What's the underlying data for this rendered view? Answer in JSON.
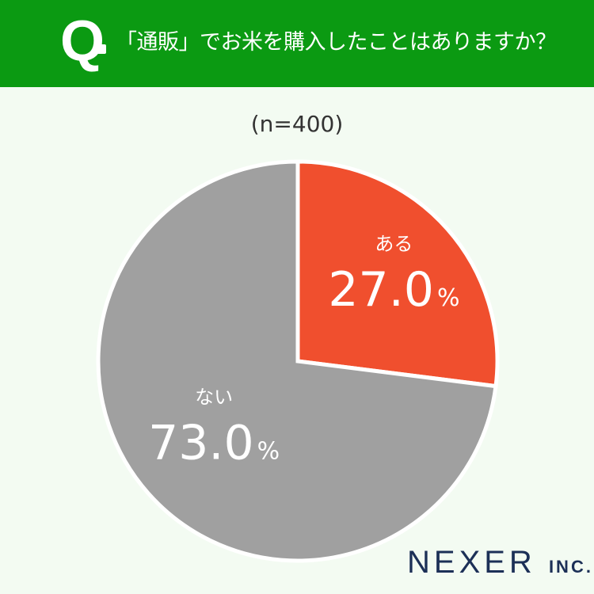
{
  "header": {
    "q_mark": "Q",
    "question": "「通販」でお米を購入したことはありますか？"
  },
  "sample_size": "(n=400)",
  "chart_data": {
    "type": "pie",
    "title": "「通販」でお米を購入したことはありますか？",
    "slices": [
      {
        "label": "ある",
        "value": 27.0,
        "display": "27.0",
        "unit": "%",
        "color": "#f04f2e"
      },
      {
        "label": "ない",
        "value": 73.0,
        "display": "73.0",
        "unit": "%",
        "color": "#a0a0a0"
      }
    ],
    "start_angle": "12 o'clock",
    "direction": "clockwise",
    "legend": "none (labels inside slices)"
  },
  "logo": {
    "main": "NEXER",
    "sub": "INC."
  }
}
